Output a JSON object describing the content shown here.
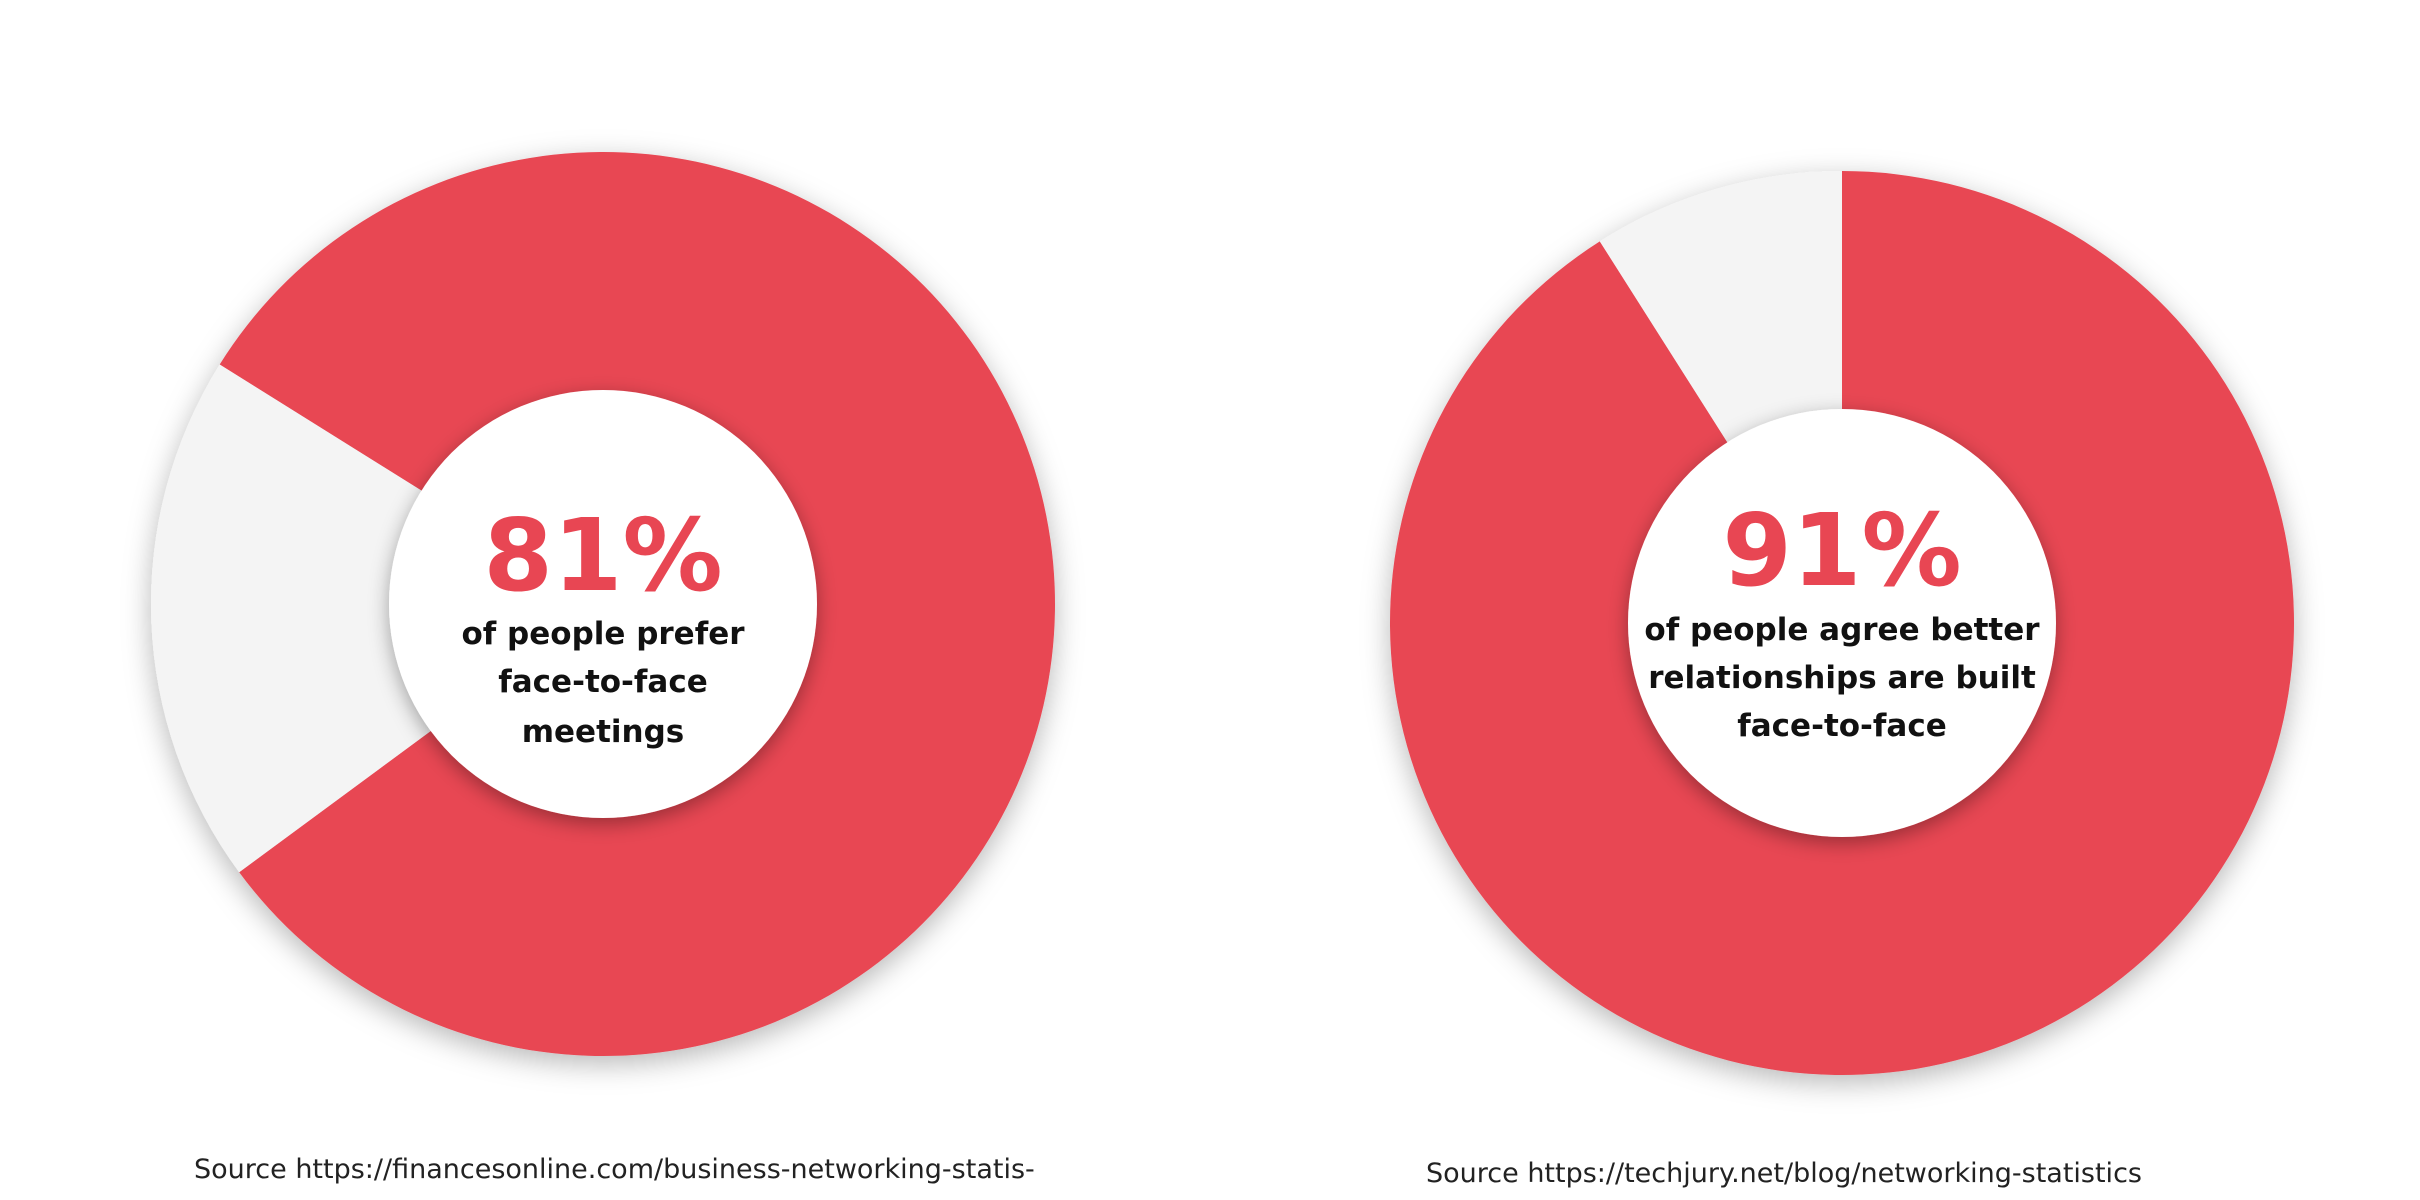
{
  "colors": {
    "accent": "#e84653",
    "remainder": "#f4f4f4",
    "text": "#111111",
    "background": "#ffffff"
  },
  "chart_data": [
    {
      "type": "pie",
      "variant": "donut",
      "start_angle_deg": 212,
      "direction": "clockwise",
      "slices": [
        {
          "label": "of people prefer face-to-face meetings",
          "value": 81,
          "color": "#e84653"
        },
        {
          "label": "remainder",
          "value": 19,
          "color": "#f4f4f4"
        }
      ],
      "center_value": "81%",
      "center_text": [
        "of people prefer",
        "face-to-face",
        "meetings"
      ],
      "source": "Source https://financesonline.com/business-networking-statis-"
    },
    {
      "type": "pie",
      "variant": "donut",
      "start_angle_deg": 270,
      "direction": "clockwise",
      "slices": [
        {
          "label": "of people agree better relationships are built face-to-face",
          "value": 91,
          "color": "#e84653"
        },
        {
          "label": "remainder",
          "value": 9,
          "color": "#f4f4f4"
        }
      ],
      "center_value": "91%",
      "center_text": [
        "of people agree better",
        "relationships are built",
        "face-to-face"
      ],
      "source": "Source https://techjury.net/blog/networking-statistics"
    }
  ]
}
